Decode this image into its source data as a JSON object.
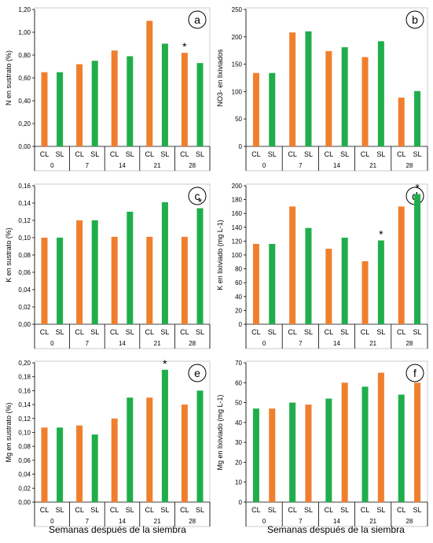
{
  "colors": {
    "CL": "#f07f2d",
    "SL": "#1fae4b"
  },
  "xlabel_bottom": "Semanas después de la siembra",
  "chart_data": [
    {
      "id": "a",
      "type": "bar",
      "letter": "a",
      "ylabel": "N en sustrato (%)",
      "ylim": [
        0,
        1.2
      ],
      "ticks": [
        "0,00",
        "0,20",
        "0,40",
        "0,60",
        "0,80",
        "1,00",
        "1,20"
      ],
      "groups": [
        "0",
        "7",
        "14",
        "21",
        "28"
      ],
      "subcats": [
        "CL",
        "SL"
      ],
      "bars": [
        {
          "label": "CL",
          "value": 0.65,
          "color": "CL"
        },
        {
          "label": "SL",
          "value": 0.65,
          "color": "SL"
        },
        {
          "label": "CL",
          "value": 0.72,
          "color": "CL"
        },
        {
          "label": "SL",
          "value": 0.75,
          "color": "SL"
        },
        {
          "label": "CL",
          "value": 0.84,
          "color": "CL"
        },
        {
          "label": "SL",
          "value": 0.79,
          "color": "SL"
        },
        {
          "label": "CL",
          "value": 1.1,
          "color": "CL"
        },
        {
          "label": "SL",
          "value": 0.9,
          "color": "SL"
        },
        {
          "label": "CL",
          "value": 0.82,
          "color": "CL",
          "star": "*"
        },
        {
          "label": "SL",
          "value": 0.73,
          "color": "SL"
        }
      ]
    },
    {
      "id": "b",
      "type": "bar",
      "letter": "b",
      "ylabel": "NO3- en lixiviados",
      "ylim": [
        0,
        250
      ],
      "ticks": [
        "0",
        "50",
        "100",
        "150",
        "200",
        "250"
      ],
      "groups": [
        "0",
        "7",
        "14",
        "21",
        "28"
      ],
      "subcats": [
        "CL",
        "SL"
      ],
      "bars": [
        {
          "label": "CL",
          "value": 134,
          "color": "CL"
        },
        {
          "label": "SL",
          "value": 134,
          "color": "SL"
        },
        {
          "label": "CL",
          "value": 208,
          "color": "CL"
        },
        {
          "label": "SL",
          "value": 210,
          "color": "SL"
        },
        {
          "label": "CL",
          "value": 174,
          "color": "CL"
        },
        {
          "label": "SL",
          "value": 181,
          "color": "SL"
        },
        {
          "label": "CL",
          "value": 163,
          "color": "CL"
        },
        {
          "label": "SL",
          "value": 192,
          "color": "SL"
        },
        {
          "label": "CL",
          "value": 89,
          "color": "CL"
        },
        {
          "label": "SL",
          "value": 101,
          "color": "SL"
        }
      ]
    },
    {
      "id": "c",
      "type": "bar",
      "letter": "c",
      "ylabel": "K en sustrato (%)",
      "ylim": [
        0,
        0.16
      ],
      "ticks": [
        "0,00",
        "0,02",
        "0,04",
        "0,06",
        "0,08",
        "0,10",
        "0,12",
        "0,14",
        "0,16"
      ],
      "groups": [
        "0",
        "7",
        "14",
        "21",
        "28"
      ],
      "subcats": [
        "CL",
        "SL"
      ],
      "bars": [
        {
          "label": "CL",
          "value": 0.1,
          "color": "CL"
        },
        {
          "label": "SL",
          "value": 0.1,
          "color": "SL"
        },
        {
          "label": "CL",
          "value": 0.12,
          "color": "CL"
        },
        {
          "label": "SL",
          "value": 0.12,
          "color": "SL"
        },
        {
          "label": "CL",
          "value": 0.101,
          "color": "CL"
        },
        {
          "label": "SL",
          "value": 0.13,
          "color": "SL"
        },
        {
          "label": "CL",
          "value": 0.101,
          "color": "CL"
        },
        {
          "label": "SL",
          "value": 0.141,
          "color": "SL"
        },
        {
          "label": "CL",
          "value": 0.101,
          "color": "CL"
        },
        {
          "label": "SL",
          "value": 0.134,
          "color": "SL",
          "star": "*"
        }
      ]
    },
    {
      "id": "d",
      "type": "bar",
      "letter": "d",
      "ylabel": "K en lixiviado (mg L-1)",
      "ylim": [
        0,
        200
      ],
      "ticks": [
        "0",
        "20",
        "40",
        "60",
        "80",
        "100",
        "120",
        "140",
        "160",
        "180",
        "200"
      ],
      "groups": [
        "0",
        "7",
        "14",
        "21",
        "28"
      ],
      "subcats": [
        "CL",
        "SL"
      ],
      "bars": [
        {
          "label": "CL",
          "value": 116,
          "color": "CL"
        },
        {
          "label": "SL",
          "value": 116,
          "color": "SL"
        },
        {
          "label": "CL",
          "value": 170,
          "color": "CL"
        },
        {
          "label": "SL",
          "value": 139,
          "color": "SL"
        },
        {
          "label": "CL",
          "value": 109,
          "color": "CL"
        },
        {
          "label": "SL",
          "value": 125,
          "color": "SL"
        },
        {
          "label": "CL",
          "value": 91,
          "color": "CL"
        },
        {
          "label": "SL",
          "value": 121,
          "color": "SL",
          "star": "*"
        },
        {
          "label": "CL",
          "value": 170,
          "color": "CL"
        },
        {
          "label": "SL",
          "value": 188,
          "color": "SL",
          "star": "*"
        }
      ]
    },
    {
      "id": "e",
      "type": "bar",
      "letter": "e",
      "ylabel": "Mg en sustrato (%)",
      "ylim": [
        0,
        0.2
      ],
      "ticks": [
        "0,00",
        "0,02",
        "0,04",
        "0,06",
        "0,08",
        "0,10",
        "0,12",
        "0,14",
        "0,16",
        "0,18",
        "0,20"
      ],
      "groups": [
        "0",
        "7",
        "14",
        "21",
        "28"
      ],
      "subcats": [
        "CL",
        "SL"
      ],
      "bars": [
        {
          "label": "CL",
          "value": 0.107,
          "color": "CL"
        },
        {
          "label": "SL",
          "value": 0.107,
          "color": "SL"
        },
        {
          "label": "CL",
          "value": 0.11,
          "color": "CL"
        },
        {
          "label": "SL",
          "value": 0.097,
          "color": "SL"
        },
        {
          "label": "CL",
          "value": 0.12,
          "color": "CL"
        },
        {
          "label": "SL",
          "value": 0.15,
          "color": "SL"
        },
        {
          "label": "CL",
          "value": 0.15,
          "color": "CL"
        },
        {
          "label": "SL",
          "value": 0.19,
          "color": "SL",
          "star": "*"
        },
        {
          "label": "CL",
          "value": 0.14,
          "color": "CL"
        },
        {
          "label": "SL",
          "value": 0.16,
          "color": "SL"
        }
      ]
    },
    {
      "id": "f",
      "type": "bar",
      "letter": "f",
      "ylabel": "Mg en lixiviado (mg L-1)",
      "ylim": [
        0,
        70
      ],
      "ticks": [
        "0",
        "10",
        "20",
        "30",
        "40",
        "50",
        "60",
        "70"
      ],
      "groups": [
        "0",
        "7",
        "14",
        "21",
        "28"
      ],
      "subcats": [
        "CL",
        "SL"
      ],
      "bars": [
        {
          "label": "CL",
          "value": 47,
          "color": "SL"
        },
        {
          "label": "SL",
          "value": 47,
          "color": "CL"
        },
        {
          "label": "CL",
          "value": 50,
          "color": "SL"
        },
        {
          "label": "SL",
          "value": 49,
          "color": "CL"
        },
        {
          "label": "CL",
          "value": 52,
          "color": "SL"
        },
        {
          "label": "SL",
          "value": 60,
          "color": "CL"
        },
        {
          "label": "CL",
          "value": 58,
          "color": "SL"
        },
        {
          "label": "SL",
          "value": 65,
          "color": "CL"
        },
        {
          "label": "CL",
          "value": 54,
          "color": "SL"
        },
        {
          "label": "SL",
          "value": 60,
          "color": "CL"
        }
      ]
    }
  ]
}
